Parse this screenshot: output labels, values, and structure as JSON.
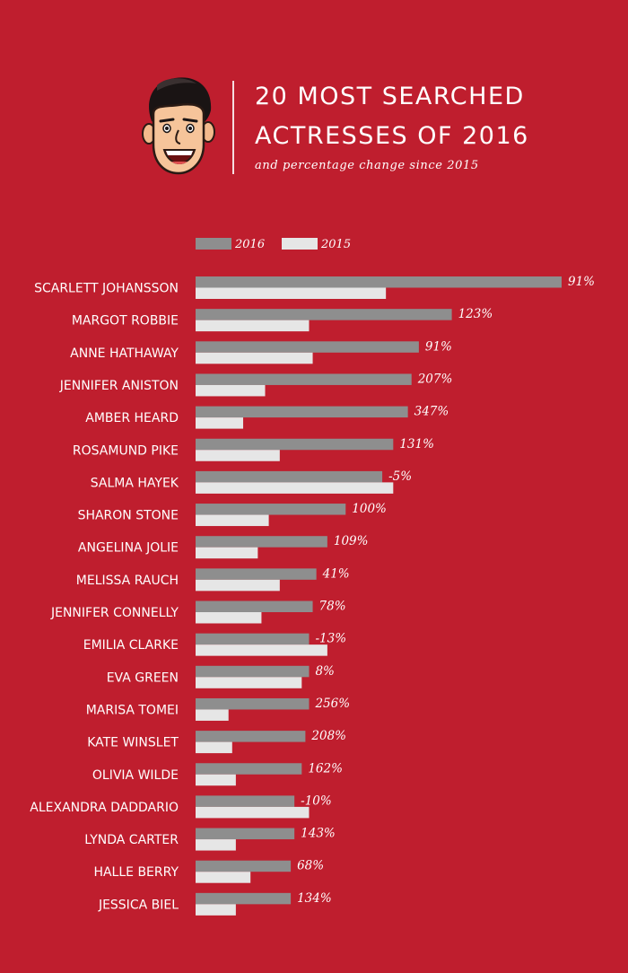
{
  "header": {
    "title_line1": "20 MOST SEARCHED",
    "title_line2": "ACTRESSES OF 2016",
    "subtitle": "and percentage change since 2015"
  },
  "colors": {
    "background": "#bf1e2e",
    "bar_2016": "#8e8e8e",
    "bar_2015": "#e6e6e6",
    "text": "#ffffff"
  },
  "icons": {
    "mascot": "retro-smiling-man-face-icon"
  },
  "chart_data": {
    "type": "bar",
    "orientation": "horizontal",
    "legend": {
      "position": "top-left",
      "entries": [
        "2016",
        "2015"
      ]
    },
    "grid": false,
    "xlim": [
      0,
      100
    ],
    "categories": [
      "SCARLETT JOHANSSON",
      "MARGOT ROBBIE",
      "ANNE HATHAWAY",
      "JENNIFER ANISTON",
      "AMBER HEARD",
      "ROSAMUND PIKE",
      "SALMA HAYEK",
      "SHARON STONE",
      "ANGELINA JOLIE",
      "MELISSA RAUCH",
      "JENNIFER CONNELLY",
      "EMILIA CLARKE",
      "EVA GREEN",
      "MARISA TOMEI",
      "KATE WINSLET",
      "OLIVIA WILDE",
      "ALEXANDRA DADDARIO",
      "LYNDA CARTER",
      "HALLE BERRY",
      "JESSICA BIEL"
    ],
    "series": [
      {
        "name": "2016",
        "values": [
          100,
          70,
          61,
          59,
          58,
          54,
          51,
          41,
          36,
          33,
          32,
          31,
          31,
          31,
          30,
          29,
          27,
          27,
          26,
          26
        ]
      },
      {
        "name": "2015",
        "values": [
          52,
          31,
          32,
          19,
          13,
          23,
          54,
          20,
          17,
          23,
          18,
          36,
          29,
          9,
          10,
          11,
          31,
          11,
          15,
          11
        ]
      }
    ],
    "data_labels": [
      "91%",
      "123%",
      "91%",
      "207%",
      "347%",
      "131%",
      "-5%",
      "100%",
      "109%",
      "41%",
      "78%",
      "-13%",
      "8%",
      "256%",
      "208%",
      "162%",
      "-10%",
      "143%",
      "68%",
      "134%"
    ]
  }
}
